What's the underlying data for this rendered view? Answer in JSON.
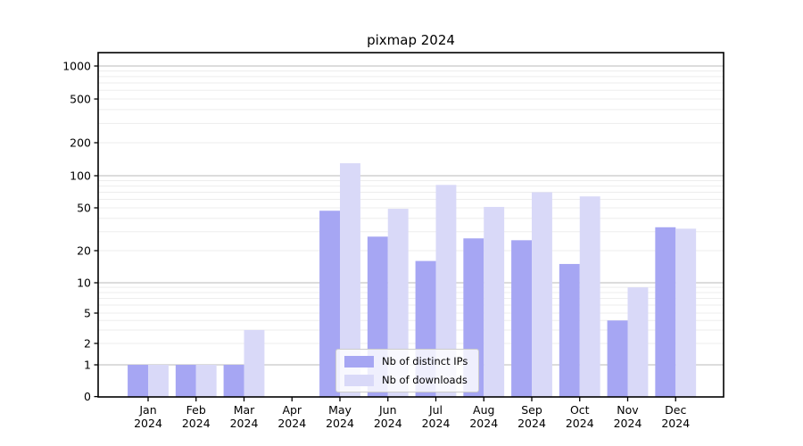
{
  "chart_data": {
    "type": "bar",
    "title": "pixmap 2024",
    "categories": [
      "Jan",
      "Feb",
      "Mar",
      "Apr",
      "May",
      "Jun",
      "Jul",
      "Aug",
      "Sep",
      "Oct",
      "Nov",
      "Dec"
    ],
    "year_label": "2024",
    "series": [
      {
        "name": "Nb of distinct IPs",
        "color": "#a6a6f3",
        "values": [
          1,
          1,
          1,
          0,
          47,
          27,
          16,
          26,
          25,
          15,
          4,
          33
        ]
      },
      {
        "name": "Nb of downloads",
        "color": "#d9d9f8",
        "values": [
          1,
          1,
          3,
          0,
          130,
          49,
          82,
          51,
          70,
          64,
          9,
          32
        ]
      }
    ],
    "y_axis": {
      "scale": "symlog",
      "ticks": [
        0,
        1,
        2,
        5,
        10,
        20,
        50,
        100,
        200,
        500,
        1000
      ],
      "ylim": [
        0,
        1300
      ]
    },
    "legend": {
      "position": "lower-center",
      "background": "#ffffff",
      "border_color": "#cccccc"
    },
    "grid": {
      "major_color": "#b9b9b9",
      "minor_color": "#ededed",
      "axis_color": "#000000",
      "text_color": "#000000"
    }
  }
}
